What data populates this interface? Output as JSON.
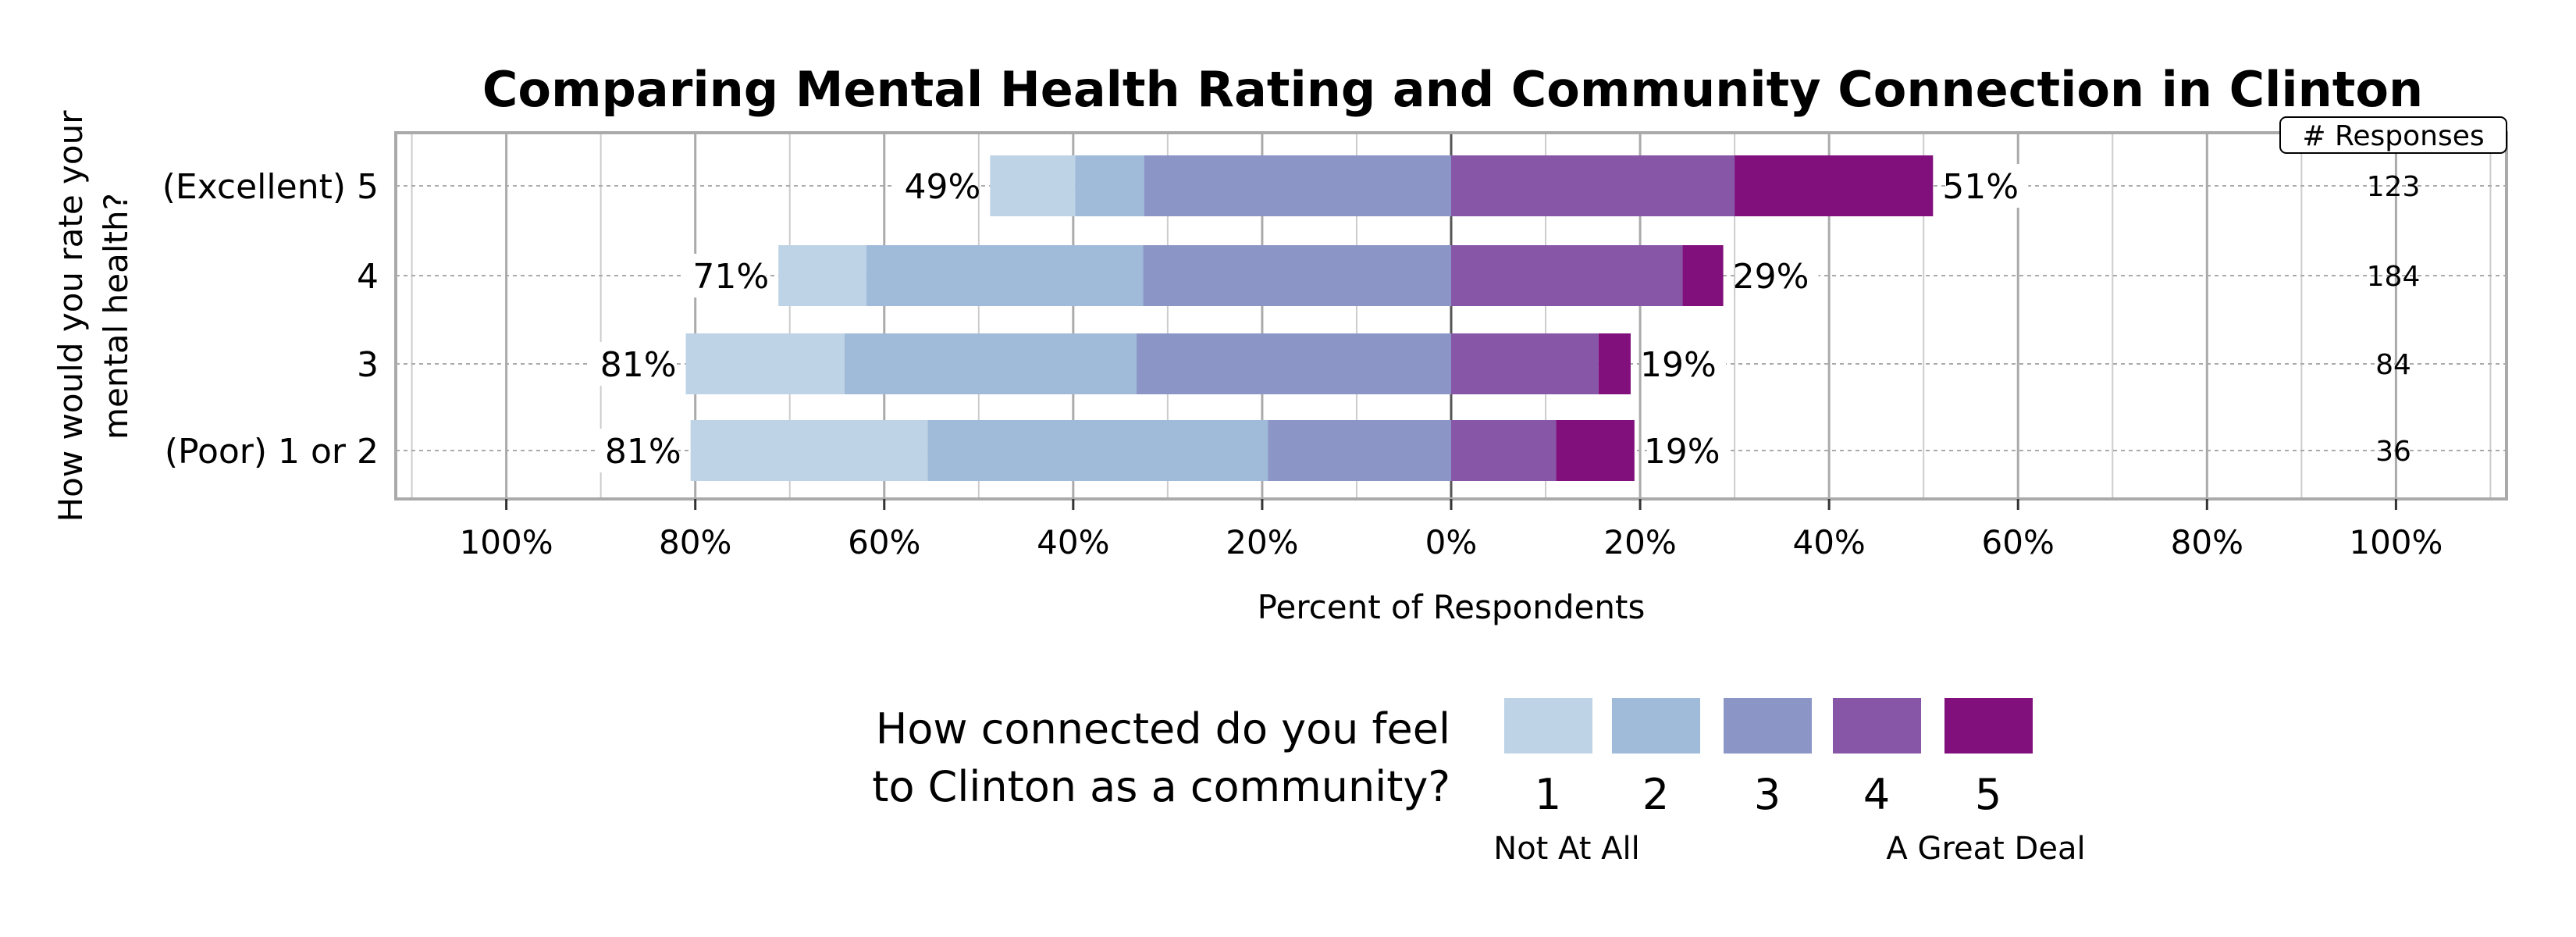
{
  "chart_data": {
    "type": "bar",
    "subtype": "diverging-stacked-horizontal",
    "title": "Comparing Mental Health Rating and Community Connection in Clinton",
    "xlabel": "Percent of Respondents",
    "ylabel": "How would you rate your mental health?",
    "ylabel_lines": [
      "How would you rate your",
      "mental health?"
    ],
    "xlim": [
      -111.7,
      111.7
    ],
    "xticks": [
      -100,
      -80,
      -60,
      -40,
      -20,
      0,
      20,
      40,
      60,
      80,
      100
    ],
    "xtick_labels": [
      "100%",
      "80%",
      "60%",
      "40%",
      "20%",
      "0%",
      "20%",
      "40%",
      "60%",
      "80%",
      "100%"
    ],
    "grid": true,
    "categories": [
      "(Excellent) 5",
      "4",
      "3",
      "(Poor) 1 or 2"
    ],
    "series": [
      {
        "name": "1",
        "values": [
          9.0,
          9.3,
          16.8,
          25.1
        ]
      },
      {
        "name": "2",
        "values": [
          7.3,
          29.3,
          30.9,
          36.0
        ]
      },
      {
        "name": "3",
        "values": [
          32.5,
          32.6,
          33.3,
          19.4
        ]
      },
      {
        "name": "4",
        "values": [
          30.0,
          24.5,
          15.6,
          11.1
        ]
      },
      {
        "name": "5",
        "values": [
          21.0,
          4.3,
          3.4,
          8.3
        ]
      }
    ],
    "negative_label": [
      "49%",
      "71%",
      "81%",
      "81%"
    ],
    "positive_label": [
      "51%",
      "29%",
      "19%",
      "19%"
    ],
    "responses_header": "# Responses",
    "responses": [
      "123",
      "184",
      "84",
      "36"
    ],
    "legend": {
      "title_lines": [
        "How connected do you feel",
        "to Clinton as a community?"
      ],
      "labels": [
        "1",
        "2",
        "3",
        "4",
        "5"
      ],
      "low_anchor": "Not At All",
      "high_anchor": "A Great Deal",
      "placement": "bottom"
    },
    "colors": [
      "#bed3e6",
      "#9fbbd9",
      "#8c96c6",
      "#8856a7",
      "#810f7c"
    ]
  }
}
